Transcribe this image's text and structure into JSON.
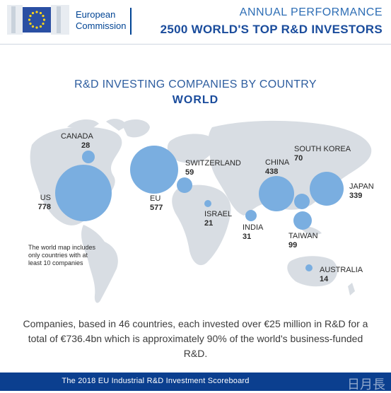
{
  "header": {
    "org_line1": "European",
    "org_line2": "Commission",
    "title_line1": "ANNUAL PERFORMANCE",
    "title_line2": "2500 WORLD'S TOP R&D INVESTORS"
  },
  "map": {
    "title": "R&D INVESTING COMPANIES BY COUNTRY",
    "subtitle": "WORLD",
    "bubble_color": "#7aaee0",
    "land_color": "#d8dde3",
    "countries": [
      {
        "name": "CANADA",
        "value": "28"
      },
      {
        "name": "US",
        "value": "778"
      },
      {
        "name": "EU",
        "value": "577"
      },
      {
        "name": "SWITZERLAND",
        "value": "59"
      },
      {
        "name": "ISRAEL",
        "value": "21"
      },
      {
        "name": "INDIA",
        "value": "31"
      },
      {
        "name": "CHINA",
        "value": "438"
      },
      {
        "name": "SOUTH KOREA",
        "value": "70"
      },
      {
        "name": "JAPAN",
        "value": "339"
      },
      {
        "name": "TAIWAN",
        "value": "99"
      },
      {
        "name": "AUSTRALIA",
        "value": "14"
      }
    ],
    "note": "The world map includes only countries with at least 10 companies"
  },
  "summary": "Companies, based in 46 countries, each invested over €25 million in R&D for a total of €736.4bn which is approximately 90% of the world's business-funded R&D.",
  "footer": {
    "text": "The 2018 EU Industrial R&D Investment Scoreboard",
    "watermark": "日月長"
  }
}
